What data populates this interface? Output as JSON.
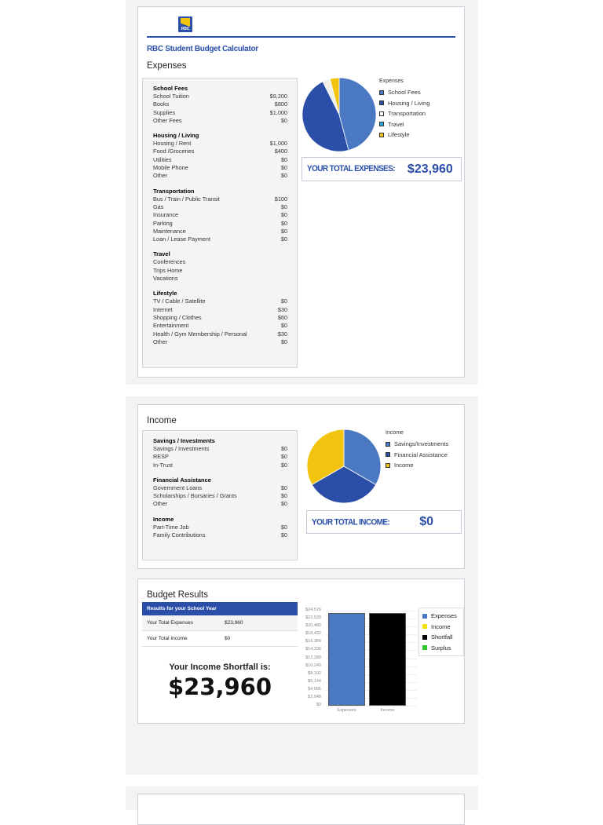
{
  "app": {
    "logo_text": "RBC",
    "title": "RBC Student Budget Calculator"
  },
  "expenses": {
    "title": "Expenses",
    "groups": [
      {
        "name": "School Fees",
        "items": [
          {
            "label": "School Tuition",
            "value": "$9,200"
          },
          {
            "label": "Books",
            "value": "$800"
          },
          {
            "label": "Supplies",
            "value": "$1,000"
          },
          {
            "label": "Other Fees",
            "value": "$0"
          }
        ]
      },
      {
        "name": "Housing / Living",
        "items": [
          {
            "label": "Housing / Rent",
            "value": "$1,000"
          },
          {
            "label": "Food /Groceries",
            "value": "$400"
          },
          {
            "label": "Utilities",
            "value": "$0"
          },
          {
            "label": "Mobile Phone",
            "value": "$0"
          },
          {
            "label": "Other",
            "value": "$0"
          }
        ]
      },
      {
        "name": "Transportation",
        "items": [
          {
            "label": "Bus / Train / Public Transit",
            "value": "$100"
          },
          {
            "label": "Gas",
            "value": "$0"
          },
          {
            "label": "Insurance",
            "value": "$0"
          },
          {
            "label": "Parking",
            "value": "$0"
          },
          {
            "label": "Maintenance",
            "value": "$0"
          },
          {
            "label": "Loan / Lease Payment",
            "value": "$0"
          }
        ]
      },
      {
        "name": "Travel",
        "items": [
          {
            "label": "Conferences",
            "value": ""
          },
          {
            "label": "Trips Home",
            "value": ""
          },
          {
            "label": "Vacations",
            "value": ""
          }
        ]
      },
      {
        "name": "Lifestyle",
        "items": [
          {
            "label": "TV / Cable / Satellite",
            "value": "$0"
          },
          {
            "label": "Internet",
            "value": "$30"
          },
          {
            "label": "Shopping / Clothes",
            "value": "$60"
          },
          {
            "label": "Entertainment",
            "value": "$0"
          },
          {
            "label": "Health / Gym Membership / Personal",
            "value": "$30"
          },
          {
            "label": "Other",
            "value": "$0"
          }
        ]
      }
    ],
    "legend_title": "Expenses",
    "legend": [
      {
        "label": "School Fees",
        "color": "#4a78c2"
      },
      {
        "label": "Housing / Living",
        "color": "#2b4fa8"
      },
      {
        "label": "Transportation",
        "color": "#ffffff"
      },
      {
        "label": "Travel",
        "color": "#29a8e0"
      },
      {
        "label": "Lifestyle",
        "color": "#f2c40f"
      }
    ],
    "total_label": "YOUR TOTAL EXPENSES:",
    "total_value": "$23,960"
  },
  "income": {
    "title": "Income",
    "groups": [
      {
        "name": "Savings / Investments",
        "items": [
          {
            "label": "Savings / Investments",
            "value": "$0"
          },
          {
            "label": "RESP",
            "value": "$0"
          },
          {
            "label": "In-Trust",
            "value": "$0"
          }
        ]
      },
      {
        "name": "Financial Assistance",
        "items": [
          {
            "label": "Government Loans",
            "value": "$0"
          },
          {
            "label": "Scholarships / Bursaries / Grants",
            "value": "$0"
          },
          {
            "label": "Other",
            "value": "$0"
          }
        ]
      },
      {
        "name": "Income",
        "items": [
          {
            "label": "Part-Time Job",
            "value": "$0"
          },
          {
            "label": "Family Contributions",
            "value": "$0"
          }
        ]
      }
    ],
    "legend_title": "Income",
    "legend": [
      {
        "label": "Savings/Investments",
        "color": "#4a78c2"
      },
      {
        "label": "Financial Assistance",
        "color": "#2b4fa8"
      },
      {
        "label": "Income",
        "color": "#f2c40f"
      }
    ],
    "total_label": "YOUR TOTAL INCOME:",
    "total_value": "$0"
  },
  "results": {
    "title": "Budget Results",
    "table_header": "Results for your School Year",
    "rows": [
      {
        "label": "Your Total Expenses",
        "value": "$23,960"
      },
      {
        "label": "Your Total Income",
        "value": "$0"
      }
    ],
    "shortfall_label": "Your Income Shortfall is:",
    "shortfall_value": "$23,960",
    "legend": [
      {
        "label": "Expenses",
        "color": "#4a78c2"
      },
      {
        "label": "Income",
        "color": "#f2e20f"
      },
      {
        "label": "Shortfall",
        "color": "#000000"
      },
      {
        "label": "Surplus",
        "color": "#2ec52e"
      }
    ]
  },
  "chart_data": [
    {
      "type": "pie",
      "title": "Expenses",
      "categories": [
        "School Fees",
        "Housing / Living",
        "Transportation",
        "Travel",
        "Lifestyle"
      ],
      "values": [
        11000,
        11200,
        800,
        0,
        960
      ],
      "colors": [
        "#4a78c2",
        "#2b4fa8",
        "#f0f0ea",
        "#29a8e0",
        "#f2c40f"
      ]
    },
    {
      "type": "pie",
      "title": "Income",
      "categories": [
        "Savings/Investments",
        "Financial Assistance",
        "Income"
      ],
      "values": [
        1,
        1,
        1
      ],
      "colors": [
        "#4a78c2",
        "#2b4fa8",
        "#f2c40f"
      ]
    },
    {
      "type": "bar",
      "categories": [
        "Expenses",
        "Income"
      ],
      "series": [
        {
          "name": "Expenses",
          "values": [
            23960,
            0
          ]
        },
        {
          "name": "Income",
          "values": [
            0,
            0
          ]
        },
        {
          "name": "Shortfall",
          "values": [
            0,
            23960
          ]
        },
        {
          "name": "Surplus",
          "values": [
            0,
            0
          ]
        }
      ],
      "yticks": [
        "$0",
        "$2,048",
        "$4,096",
        "$6,144",
        "$8,192",
        "$10,240",
        "$12,288",
        "$14,336",
        "$16,384",
        "$18,432",
        "$20,480",
        "$22,528",
        "$24,576"
      ],
      "ylim": [
        0,
        24576
      ],
      "legend_position": "right"
    }
  ]
}
